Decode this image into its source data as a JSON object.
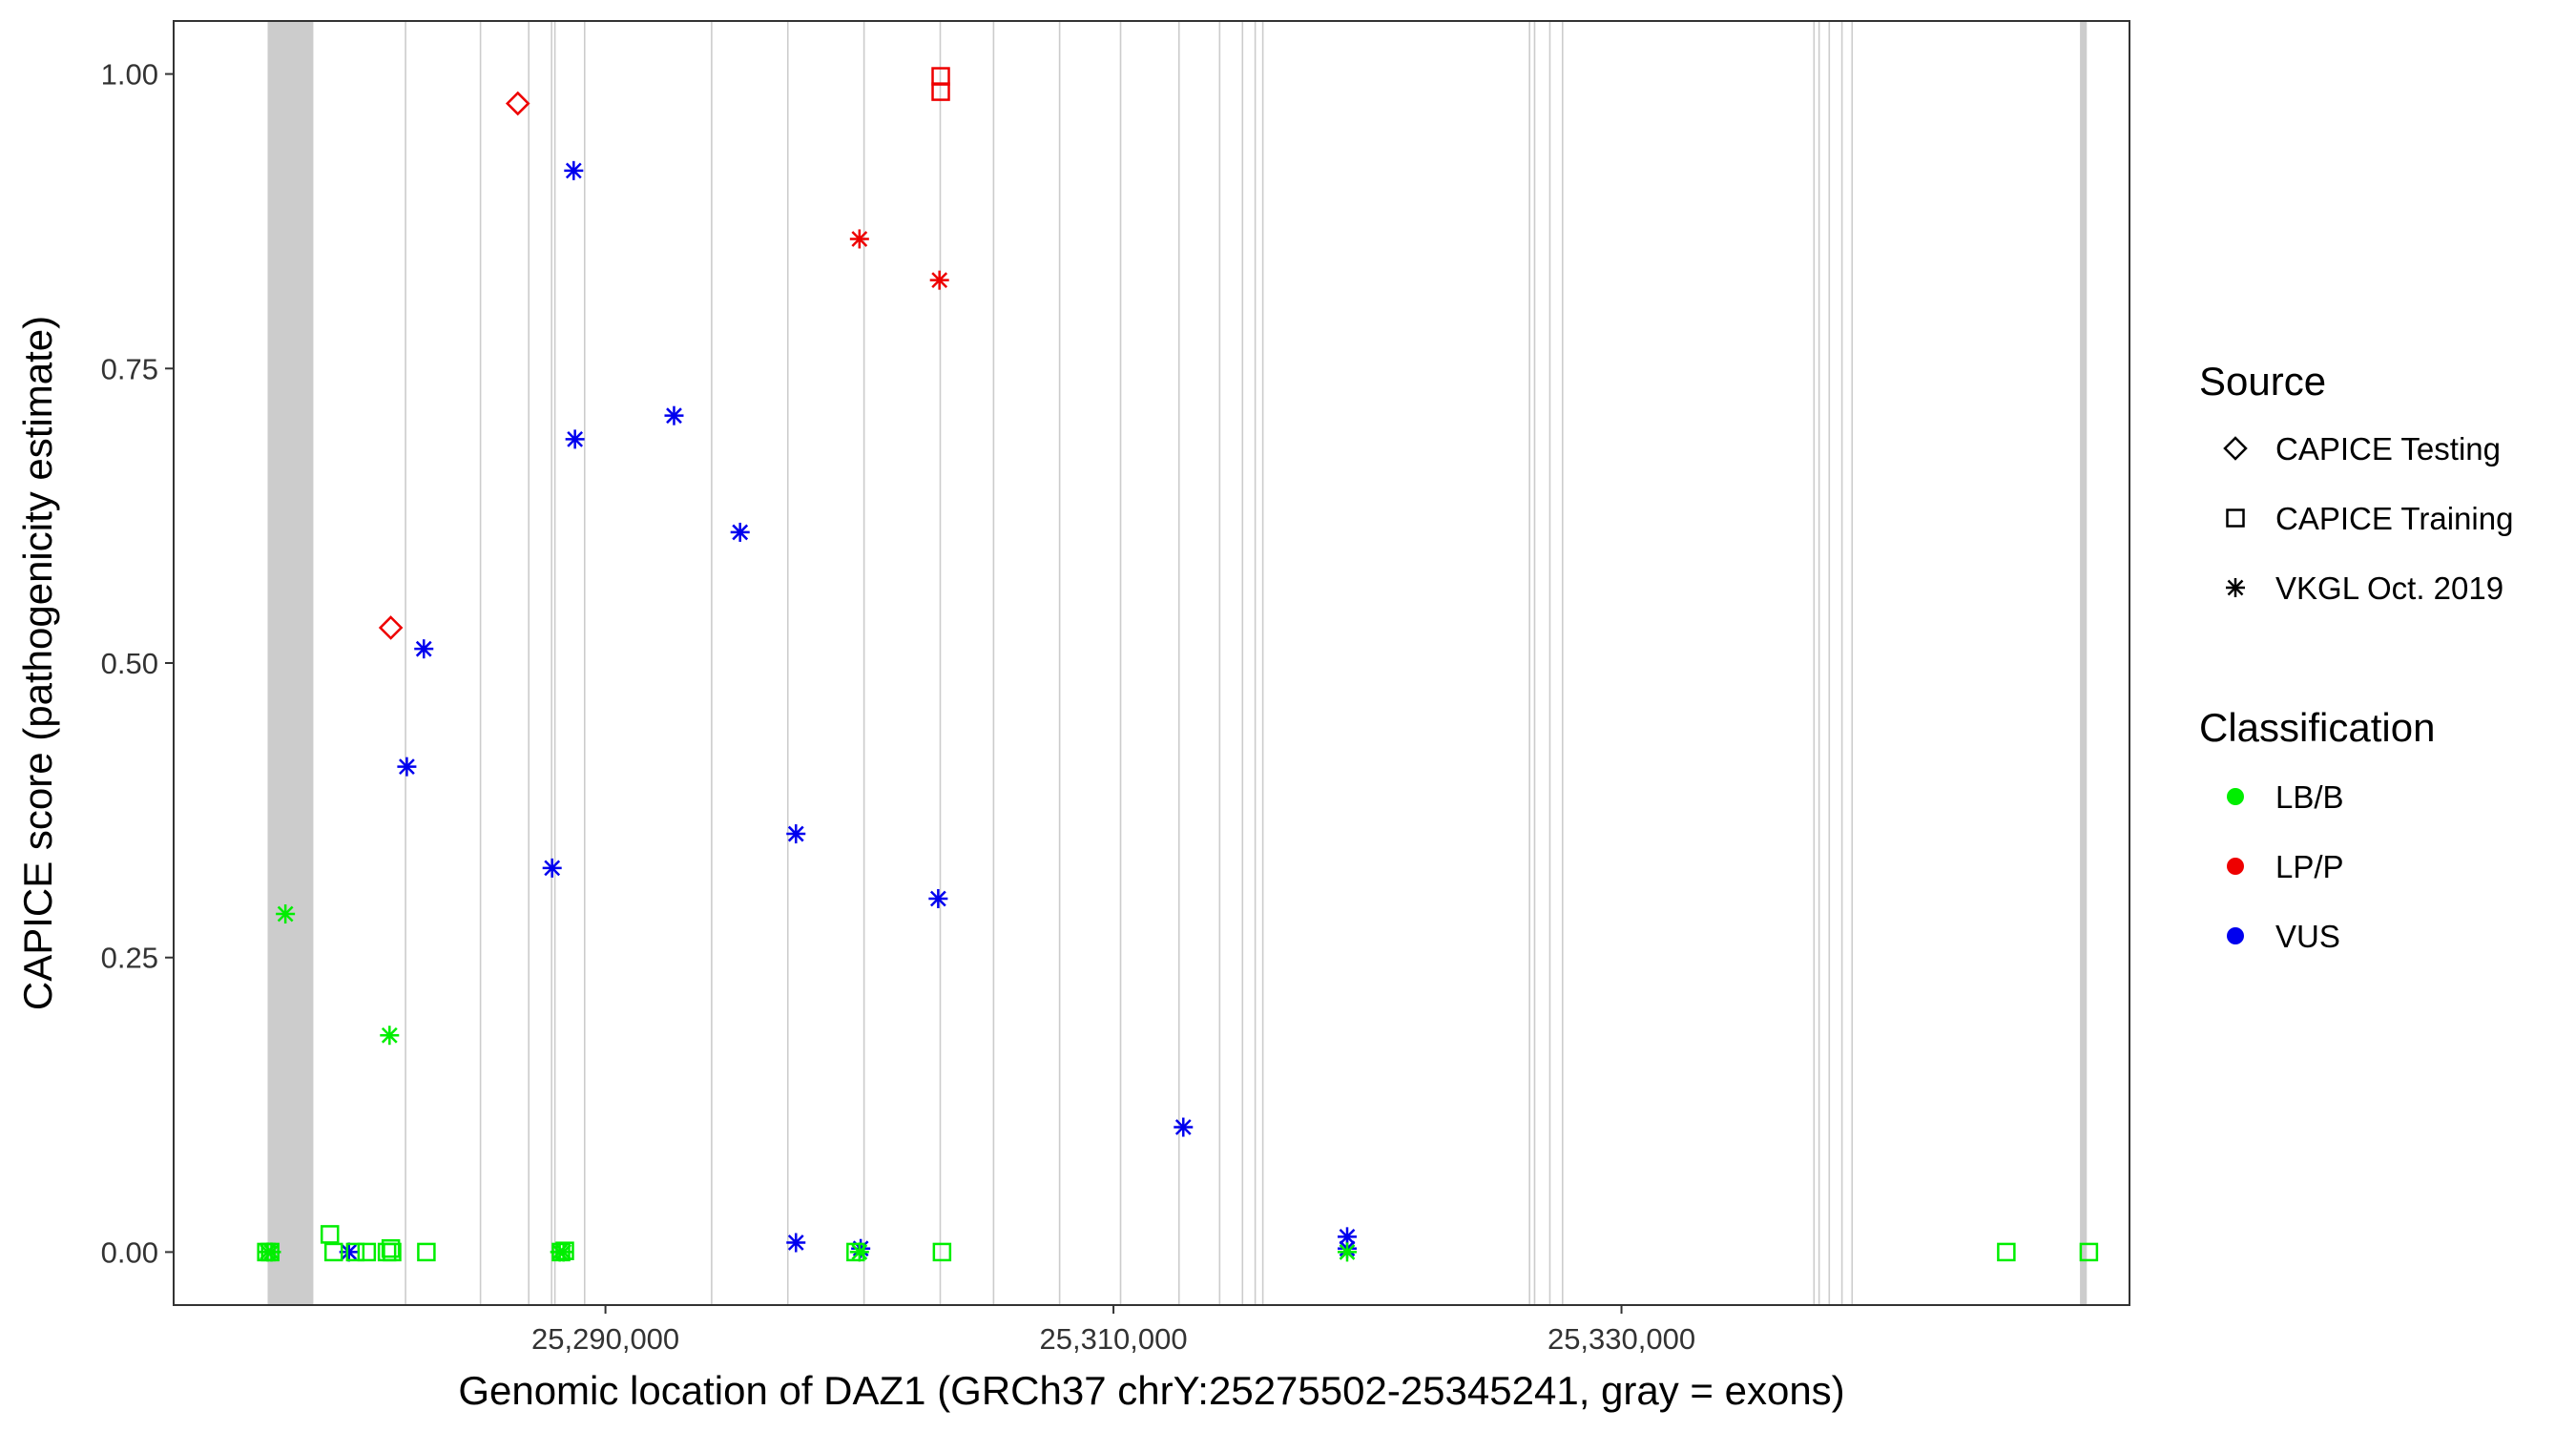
{
  "chart_data": {
    "type": "scatter",
    "title": "",
    "xlabel": "Genomic location of DAZ1 (GRCh37 chrY:25275502-25345241, gray = exons)",
    "ylabel": "CAPICE score (pathogenicity estimate)",
    "xlim": [
      25273000,
      25350000
    ],
    "ylim": [
      -0.045,
      1.045
    ],
    "x_ticks": [
      25290000,
      25310000,
      25330000
    ],
    "x_tick_labels": [
      "25,290,000",
      "25,310,000",
      "25,330,000"
    ],
    "y_ticks": [
      0,
      0.25,
      0.5,
      0.75,
      1.0
    ],
    "y_tick_labels": [
      "0.00",
      "0.25",
      "0.50",
      "0.75",
      "1.00"
    ],
    "grid": false,
    "colors": {
      "LB/B": "#00ee00",
      "LP/P": "#ee0000",
      "VUS": "#0000ee",
      "exon": "#cccccc",
      "frame": "#333333"
    },
    "exons": [
      [
        25276700,
        25278500
      ],
      [
        25282100,
        25282160
      ],
      [
        25285050,
        25285110
      ],
      [
        25286950,
        25287010
      ],
      [
        25287850,
        25287910
      ],
      [
        25287980,
        25288040
      ],
      [
        25289150,
        25289210
      ],
      [
        25294150,
        25294210
      ],
      [
        25297150,
        25297210
      ],
      [
        25300150,
        25300210
      ],
      [
        25303150,
        25303210
      ],
      [
        25305250,
        25305310
      ],
      [
        25307850,
        25307910
      ],
      [
        25310250,
        25310310
      ],
      [
        25312550,
        25312610
      ],
      [
        25314150,
        25314210
      ],
      [
        25315050,
        25315110
      ],
      [
        25315550,
        25315610
      ],
      [
        25315850,
        25315910
      ],
      [
        25326350,
        25326410
      ],
      [
        25326550,
        25326610
      ],
      [
        25327150,
        25327210
      ],
      [
        25327650,
        25327710
      ],
      [
        25337550,
        25337610
      ],
      [
        25337750,
        25337810
      ],
      [
        25338150,
        25338210
      ],
      [
        25338650,
        25338710
      ],
      [
        25339050,
        25339110
      ],
      [
        25348050,
        25348320
      ]
    ],
    "legend": {
      "placement": "right",
      "source": {
        "title": "Source",
        "items": [
          "CAPICE Testing",
          "CAPICE Training",
          "VKGL Oct. 2019"
        ]
      },
      "classification": {
        "title": "Classification",
        "items": [
          "LB/B",
          "LP/P",
          "VUS"
        ]
      }
    },
    "series": [
      {
        "source": "CAPICE Testing",
        "classification": "LP/P",
        "points": [
          [
            25281550,
            0.53
          ],
          [
            25286550,
            0.975
          ]
        ]
      },
      {
        "source": "CAPICE Training",
        "classification": "LP/P",
        "points": [
          [
            25303200,
            0.998
          ],
          [
            25303200,
            0.985
          ]
        ]
      },
      {
        "source": "VKGL Oct. 2019",
        "classification": "LP/P",
        "points": [
          [
            25300000,
            0.86
          ],
          [
            25303150,
            0.825
          ]
        ]
      },
      {
        "source": "VKGL Oct. 2019",
        "classification": "VUS",
        "points": [
          [
            25279900,
            0.0
          ],
          [
            25282180,
            0.412
          ],
          [
            25282850,
            0.512
          ],
          [
            25287900,
            0.326
          ],
          [
            25288750,
            0.918
          ],
          [
            25288800,
            0.69
          ],
          [
            25292700,
            0.71
          ],
          [
            25295300,
            0.611
          ],
          [
            25297500,
            0.355
          ],
          [
            25297500,
            0.008
          ],
          [
            25300050,
            0.003
          ],
          [
            25303100,
            0.3
          ],
          [
            25312750,
            0.106
          ],
          [
            25319200,
            0.013
          ],
          [
            25319200,
            0.003
          ]
        ]
      },
      {
        "source": "VKGL Oct. 2019",
        "classification": "LB/B",
        "points": [
          [
            25276700,
            0.0
          ],
          [
            25276850,
            0.0
          ],
          [
            25277400,
            0.287
          ],
          [
            25281500,
            0.184
          ],
          [
            25288200,
            0.0
          ],
          [
            25288350,
            0.0
          ],
          [
            25300000,
            0.0
          ],
          [
            25319200,
            0.0
          ]
        ]
      },
      {
        "source": "CAPICE Training",
        "classification": "LB/B",
        "points": [
          [
            25276650,
            0.0
          ],
          [
            25276800,
            0.0
          ],
          [
            25279150,
            0.015
          ],
          [
            25279300,
            0.0
          ],
          [
            25280150,
            0.0
          ],
          [
            25280600,
            0.0
          ],
          [
            25281400,
            0.0
          ],
          [
            25281550,
            0.003
          ],
          [
            25281600,
            0.0
          ],
          [
            25282950,
            0.0
          ],
          [
            25288250,
            0.0
          ],
          [
            25288400,
            0.001
          ],
          [
            25299850,
            0.0
          ],
          [
            25303250,
            0.0
          ],
          [
            25345150,
            0.0
          ],
          [
            25348400,
            0.0
          ]
        ]
      }
    ]
  }
}
